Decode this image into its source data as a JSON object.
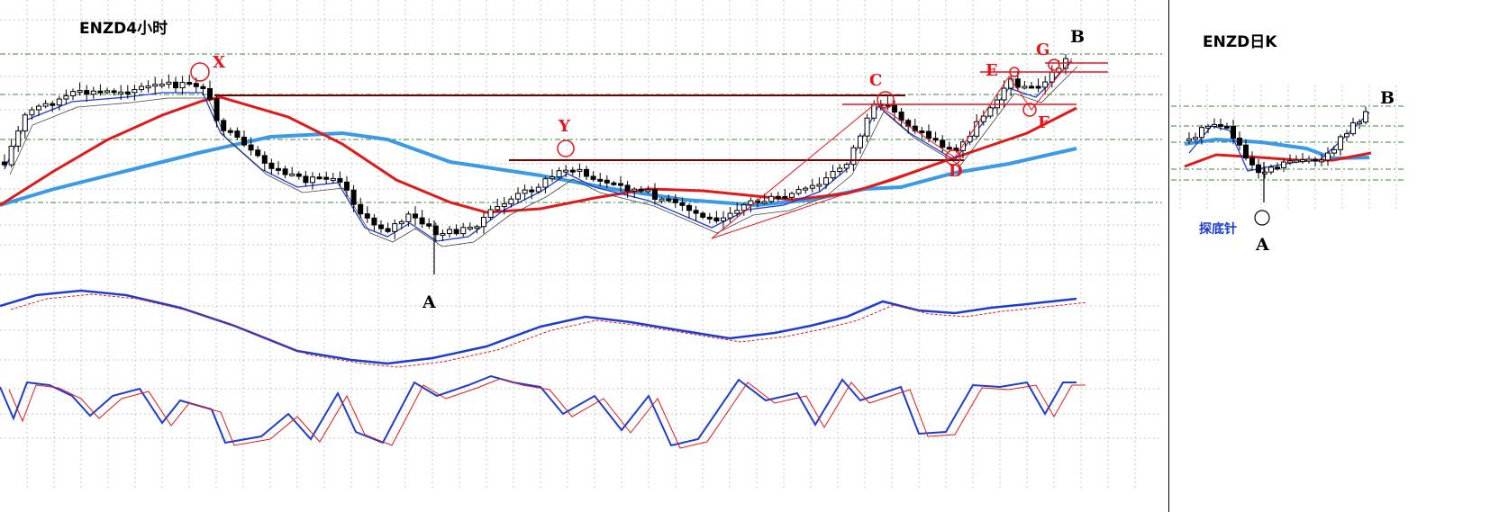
{
  "chart_data": [
    {
      "type": "candlestick",
      "title": "ENZD4小时",
      "timeframe": "4H",
      "grid": true,
      "pattern_labels": [
        "X",
        "Y",
        "C",
        "D",
        "E",
        "F",
        "G"
      ],
      "swing_labels": [
        "A",
        "B"
      ],
      "moving_averages": [
        {
          "color": "#1e3cd0",
          "role": "fast MA"
        },
        {
          "color": "#e01a1a",
          "role": "medium MA"
        },
        {
          "color": "#3b9ae6",
          "role": "slow MA"
        }
      ],
      "indicators": [
        "MACD-style lines (blue solid / red dotted)",
        "Stochastic (blue / red)"
      ]
    },
    {
      "type": "candlestick",
      "title": "ENZD日K",
      "timeframe": "1D",
      "grid": true,
      "annotation": "探底针",
      "swing_labels": [
        "A",
        "B"
      ]
    }
  ]
}
